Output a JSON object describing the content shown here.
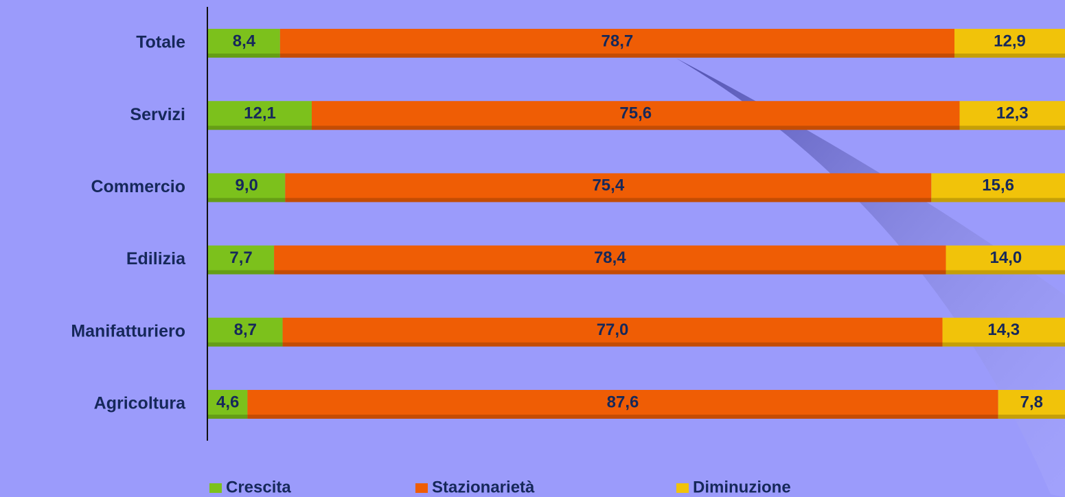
{
  "chart_data": {
    "type": "stacked-bar-horizontal",
    "categories": [
      "Totale",
      "Servizi",
      "Commercio",
      "Edilizia",
      "Manifatturiero",
      "Agricoltura"
    ],
    "series": [
      {
        "name": "Crescita",
        "color": "#7cc11c",
        "values": [
          8.4,
          12.1,
          9.0,
          7.7,
          8.7,
          4.6
        ],
        "value_labels": [
          "8,4",
          "12,1",
          "9,0",
          "7,7",
          "8,7",
          "4,6"
        ]
      },
      {
        "name": "Stazionarietà",
        "color": "#ef5d05",
        "values": [
          78.7,
          75.6,
          75.4,
          78.4,
          77.0,
          87.6
        ],
        "value_labels": [
          "78,7",
          "75,6",
          "75,4",
          "78,4",
          "77,0",
          "87,6"
        ]
      },
      {
        "name": "Diminuzione",
        "color": "#f1c30a",
        "values": [
          12.9,
          12.3,
          15.6,
          14.0,
          14.3,
          7.8
        ],
        "value_labels": [
          "12,9",
          "12,3",
          "15,6",
          "14,0",
          "14,3",
          "7,8"
        ]
      }
    ],
    "xlim": [
      0,
      100
    ],
    "legend": "bottom"
  }
}
